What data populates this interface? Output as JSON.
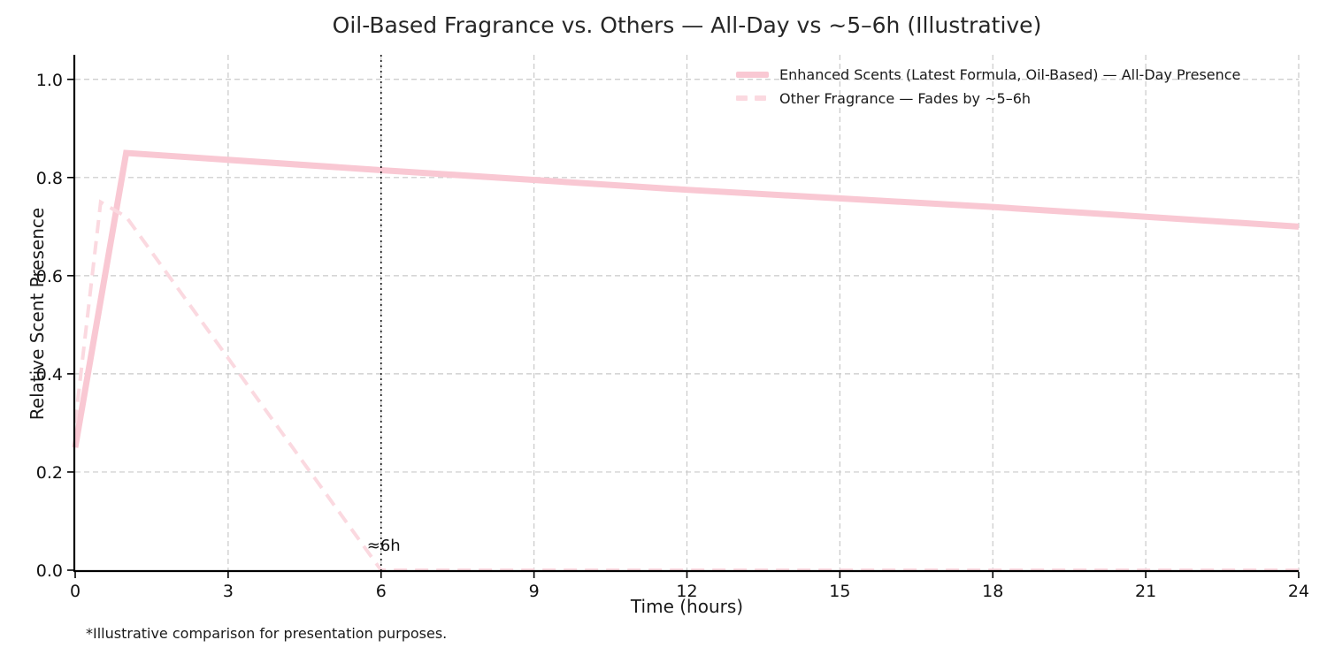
{
  "figure": {
    "footnote": "*Illustrative comparison for presentation purposes."
  },
  "chart_data": {
    "type": "line",
    "title": "Oil-Based Fragrance vs. Others — All-Day vs ~5–6h (Illustrative)",
    "xlabel": "Time (hours)",
    "ylabel": "Relative Scent Presence",
    "xlim": [
      0,
      24
    ],
    "ylim": [
      0,
      1.05
    ],
    "xticks": [
      0,
      3,
      6,
      9,
      12,
      15,
      18,
      21,
      24
    ],
    "xtick_labels": [
      "0",
      "3",
      "6",
      "9",
      "12",
      "15",
      "18",
      "21",
      "24"
    ],
    "yticks": [
      0.0,
      0.2,
      0.4,
      0.6,
      0.8,
      1.0
    ],
    "ytick_labels": [
      "0.0",
      "0.2",
      "0.4",
      "0.6",
      "0.8",
      "1.0"
    ],
    "grid": true,
    "grid_style": "dashed",
    "legend_position": "upper right",
    "legend_frame": false,
    "series": [
      {
        "name": "Enhanced Scents (Latest Formula, Oil-Based) — All-Day Presence",
        "style": "solid",
        "color": "#F9C8D3",
        "linewidth": 7,
        "points": [
          [
            0,
            0.25
          ],
          [
            1,
            0.85
          ],
          [
            6,
            0.815
          ],
          [
            12,
            0.775
          ],
          [
            18,
            0.74
          ],
          [
            24,
            0.7
          ]
        ]
      },
      {
        "name": "Other Fragrance — Fades by ~5–6h",
        "style": "dashed",
        "color": "#FBD9E0",
        "linewidth": 4,
        "points": [
          [
            0,
            0.3
          ],
          [
            0.5,
            0.75
          ],
          [
            1,
            0.72
          ],
          [
            6,
            0.0
          ],
          [
            12,
            0.0
          ],
          [
            18,
            0.0
          ],
          [
            24,
            0.0
          ]
        ]
      }
    ],
    "vline": {
      "x": 6,
      "style": "dotted",
      "color": "#111111"
    },
    "annotation": {
      "text": "≈6h",
      "x": 6,
      "y": 0.04
    }
  }
}
